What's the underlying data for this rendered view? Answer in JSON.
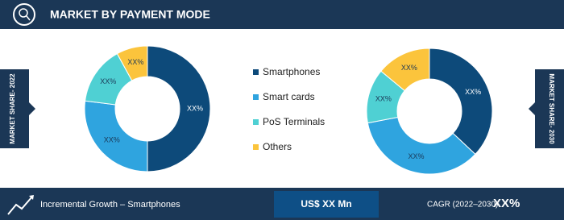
{
  "header": {
    "title": "MARKET BY PAYMENT MODE"
  },
  "chart_data": [
    {
      "type": "pie",
      "title": "MARKET SHARE- 2022",
      "categories": [
        "Smartphones",
        "Smart cards",
        "PoS Terminals",
        "Others"
      ],
      "values": [
        50,
        27,
        15,
        8
      ],
      "value_labels": [
        "XX%",
        "XX%",
        "XX%",
        "XX%"
      ],
      "colors": [
        "#0d4a7a",
        "#2fa4df",
        "#4fd0d3",
        "#fbc43c"
      ]
    },
    {
      "type": "pie",
      "title": "MARKET SHARE- 2030",
      "categories": [
        "Smartphones",
        "Smart cards",
        "PoS Terminals",
        "Others"
      ],
      "values": [
        37,
        35,
        14,
        14
      ],
      "value_labels": [
        "XX%",
        "XX%",
        "XX%",
        "XX%"
      ],
      "colors": [
        "#0d4a7a",
        "#2fa4df",
        "#4fd0d3",
        "#fbc43c"
      ]
    }
  ],
  "footer": {
    "growth_label": "Incremental Growth –  Smartphones",
    "value": "US$ XX Mn",
    "cagr_label": "CAGR (2022–2030)",
    "cagr_value": "XX%"
  }
}
